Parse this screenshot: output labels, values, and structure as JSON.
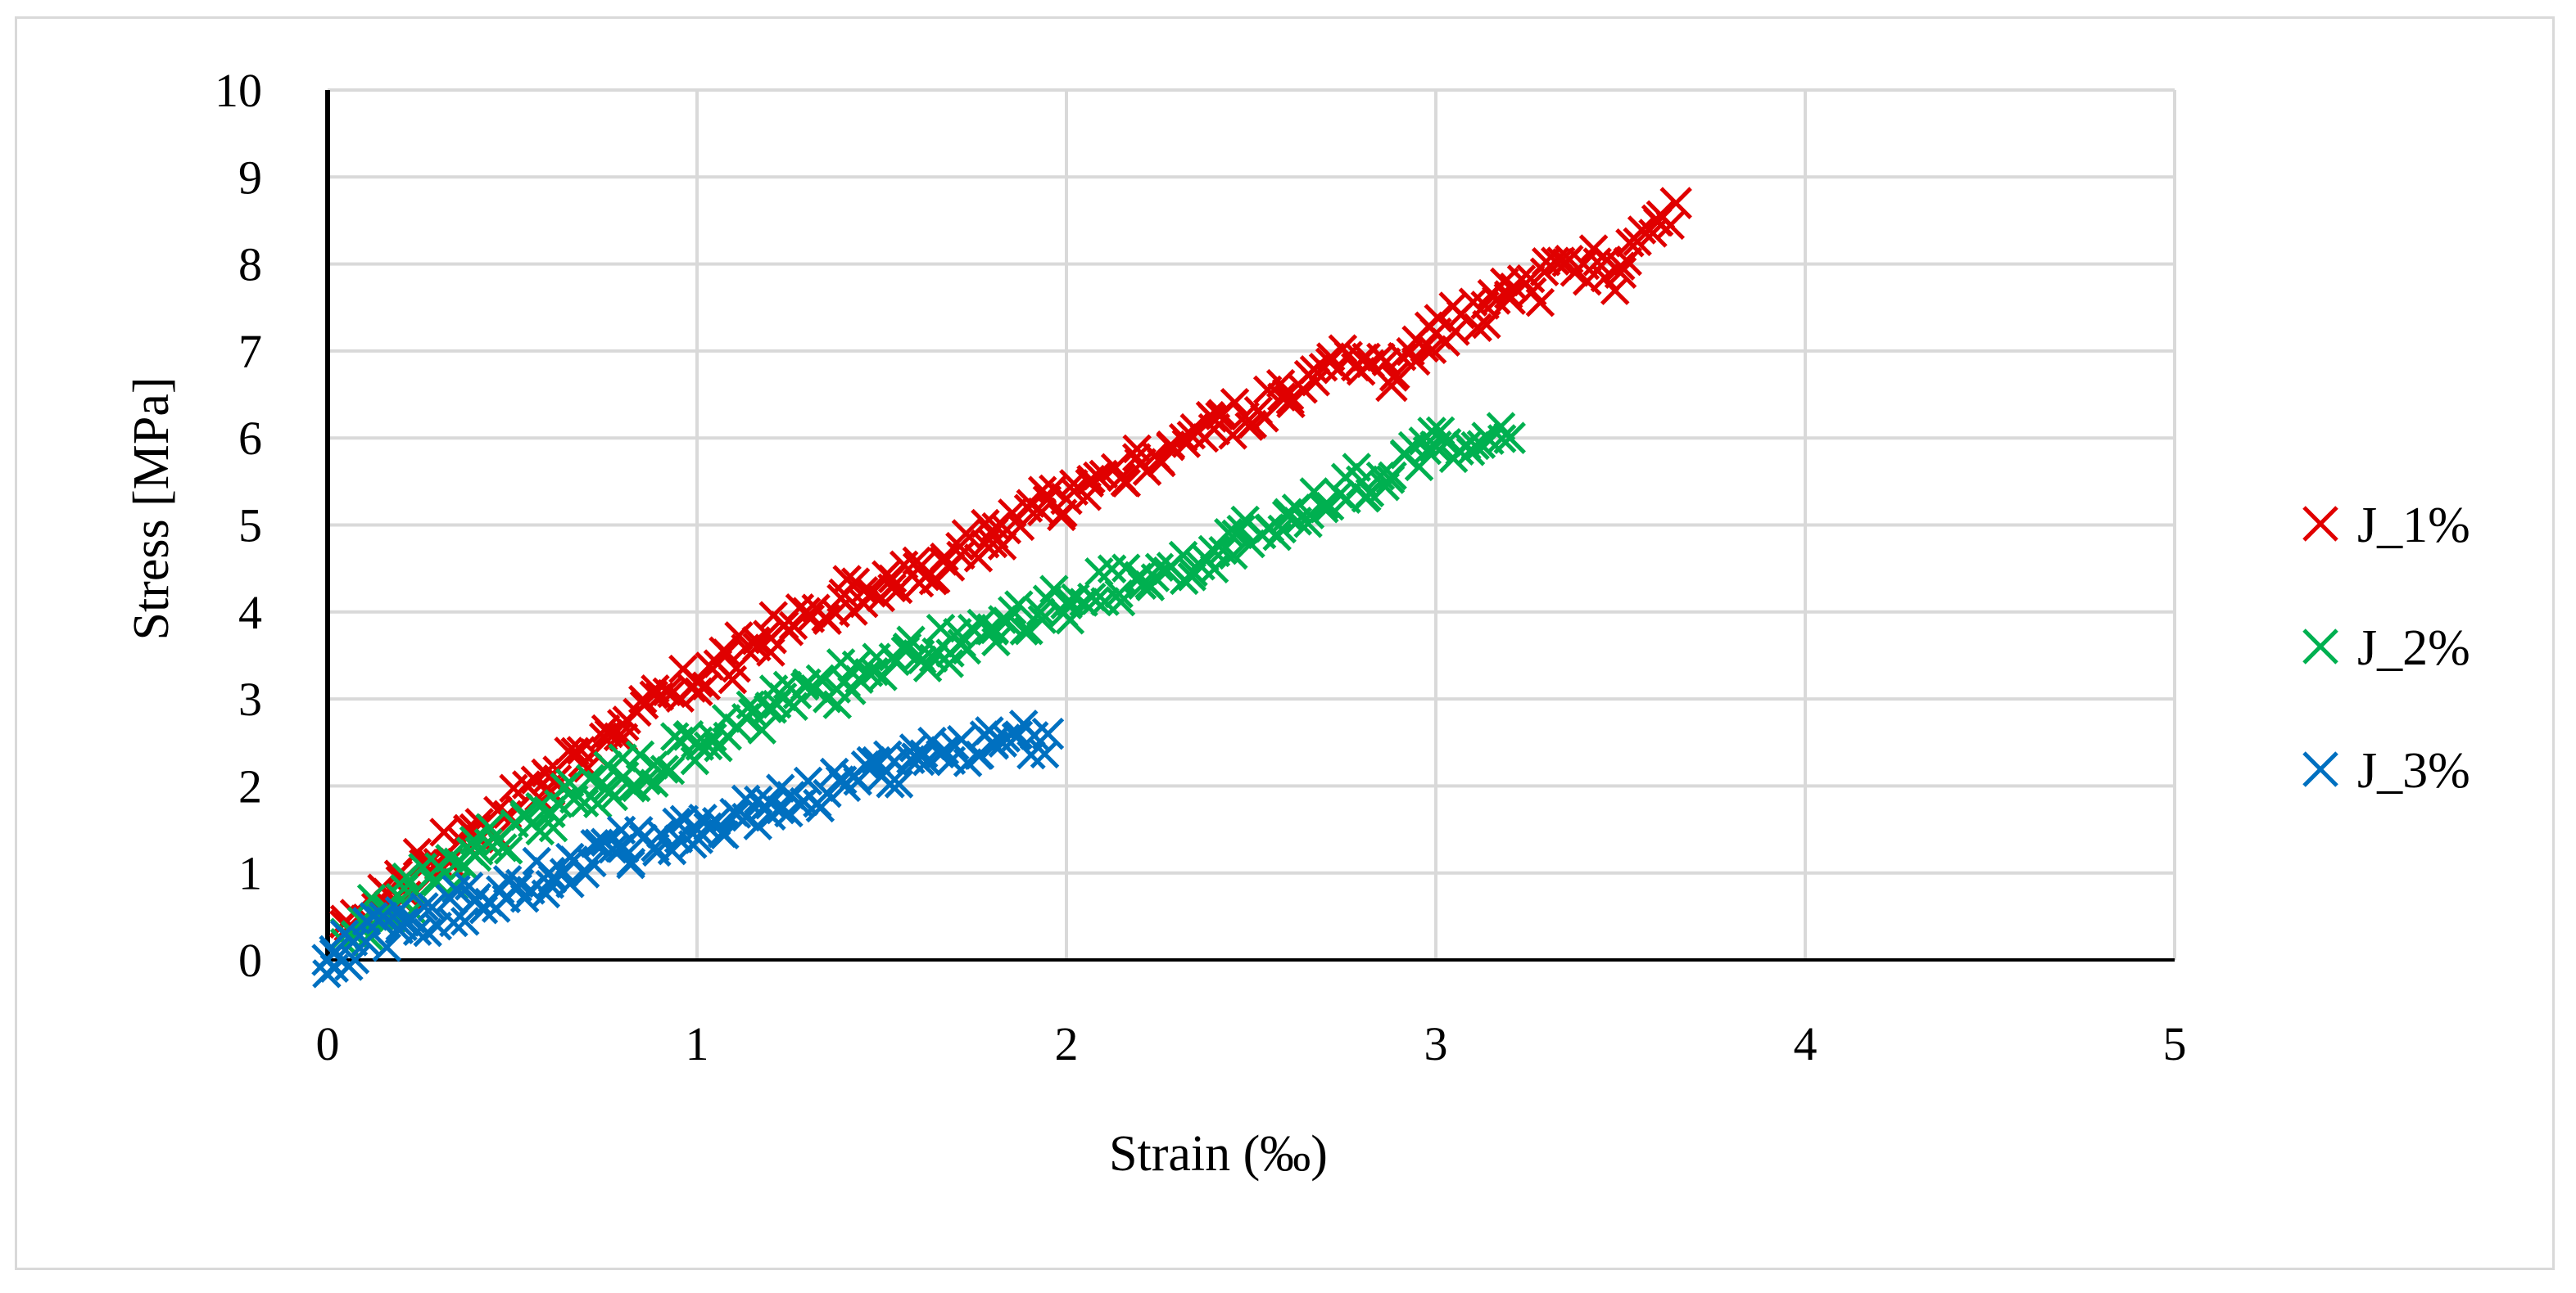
{
  "chart_data": {
    "type": "scatter",
    "title": "",
    "xlabel": "Strain (‰)",
    "ylabel": "Stress [MPa]",
    "xlim": [
      0,
      5
    ],
    "ylim": [
      0,
      10
    ],
    "x_ticks": [
      "0",
      "1",
      "2",
      "3",
      "4",
      "5"
    ],
    "y_ticks": [
      "0",
      "1",
      "2",
      "3",
      "4",
      "5",
      "6",
      "7",
      "8",
      "9",
      "10"
    ],
    "grid": true,
    "legend_position": "right",
    "marker": "x",
    "series": [
      {
        "name": "J_1%",
        "color": "#e00000",
        "points": [
          [
            0.05,
            0.45
          ],
          [
            0.2,
            0.9
          ],
          [
            0.4,
            1.5
          ],
          [
            0.6,
            2.1
          ],
          [
            0.8,
            2.7
          ],
          [
            1.0,
            3.2
          ],
          [
            1.2,
            3.7
          ],
          [
            1.4,
            4.2
          ],
          [
            1.6,
            4.5
          ],
          [
            1.8,
            4.9
          ],
          [
            2.0,
            5.3
          ],
          [
            2.2,
            5.7
          ],
          [
            2.4,
            6.1
          ],
          [
            2.6,
            6.5
          ],
          [
            2.8,
            6.9
          ],
          [
            2.88,
            6.6
          ],
          [
            3.0,
            7.2
          ],
          [
            3.2,
            7.6
          ],
          [
            3.4,
            8.0
          ],
          [
            3.5,
            7.9
          ],
          [
            3.6,
            8.5
          ],
          [
            3.65,
            8.7
          ]
        ]
      },
      {
        "name": "J_2%",
        "color": "#00b050",
        "points": [
          [
            0.05,
            0.3
          ],
          [
            0.2,
            0.7
          ],
          [
            0.4,
            1.2
          ],
          [
            0.6,
            1.7
          ],
          [
            0.8,
            2.1
          ],
          [
            1.0,
            2.5
          ],
          [
            1.2,
            2.9
          ],
          [
            1.4,
            3.2
          ],
          [
            1.6,
            3.5
          ],
          [
            1.8,
            3.8
          ],
          [
            2.0,
            4.1
          ],
          [
            2.2,
            4.4
          ],
          [
            2.4,
            4.7
          ],
          [
            2.6,
            5.1
          ],
          [
            2.8,
            5.5
          ],
          [
            3.0,
            5.9
          ],
          [
            3.2,
            6.0
          ]
        ]
      },
      {
        "name": "J_3%",
        "color": "#0070c0",
        "points": [
          [
            0.0,
            0.0
          ],
          [
            0.02,
            0.1
          ],
          [
            0.2,
            0.4
          ],
          [
            0.4,
            0.7
          ],
          [
            0.6,
            1.0
          ],
          [
            0.8,
            1.3
          ],
          [
            1.0,
            1.5
          ],
          [
            1.2,
            1.8
          ],
          [
            1.4,
            2.0
          ],
          [
            1.6,
            2.3
          ],
          [
            1.8,
            2.5
          ],
          [
            1.95,
            2.6
          ]
        ]
      }
    ]
  }
}
